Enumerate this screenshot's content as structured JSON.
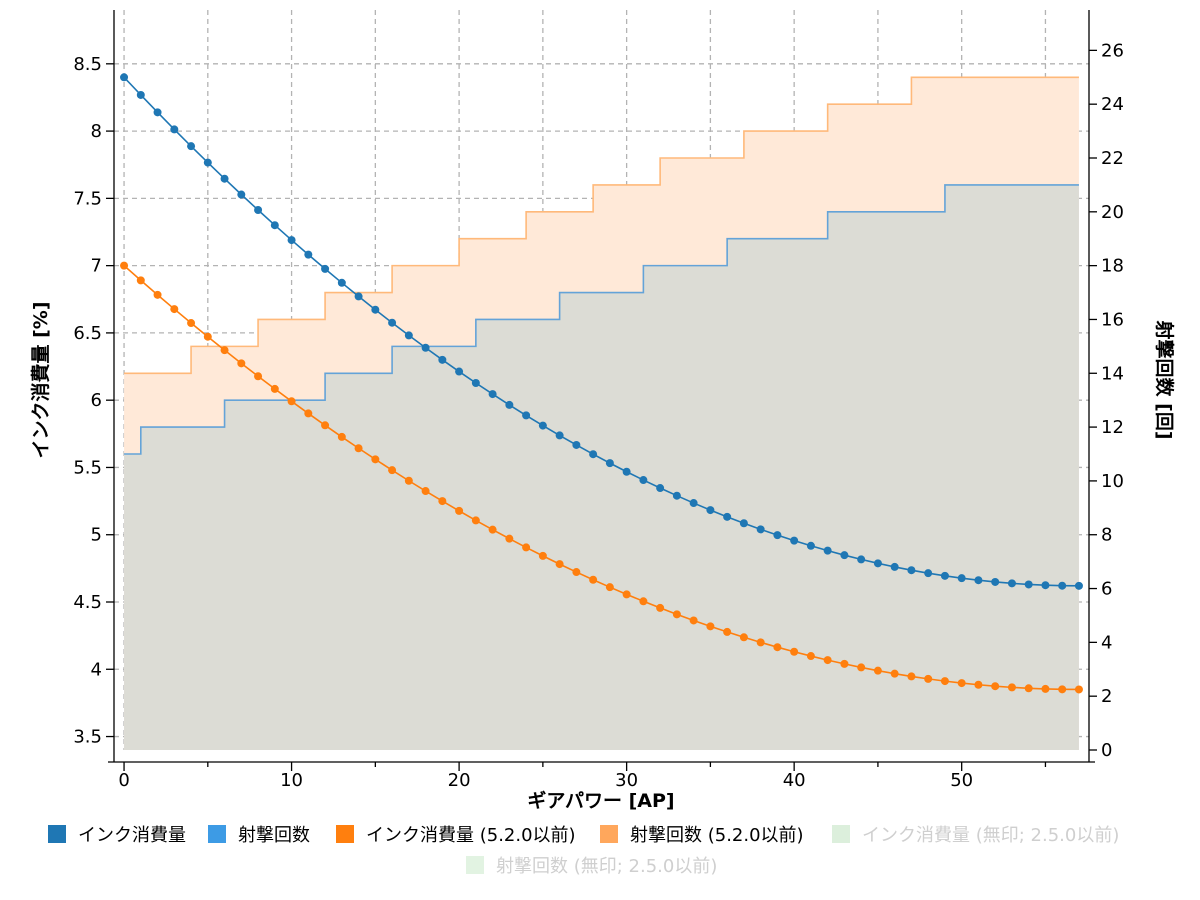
{
  "chart_data": {
    "type": "line",
    "xlabel": "ギアパワー [AP]",
    "ylabel_left": "インク消費量 [%]",
    "ylabel_right": "射撃回数 [回]",
    "xlim": [
      -0.6,
      57.6
    ],
    "ylim_left": [
      3.4,
      8.9
    ],
    "ylim_right": [
      0,
      27.5
    ],
    "x_ticks": [
      0,
      10,
      20,
      30,
      40,
      50
    ],
    "y_left_ticks": [
      3.5,
      4,
      4.5,
      5,
      5.5,
      6,
      6.5,
      7,
      7.5,
      8,
      8.5
    ],
    "y_right_ticks": [
      0,
      2,
      4,
      6,
      8,
      10,
      12,
      14,
      16,
      18,
      20,
      22,
      24,
      26
    ],
    "grid": true,
    "legend_position": "bottom",
    "ink_x_range": [
      0,
      57
    ],
    "series": [
      {
        "name": "インク消費量",
        "axis": "left",
        "kind": "line-markers",
        "color": "#1f77b4",
        "start": 8.4,
        "end": 4.62,
        "curvature": 1.18,
        "legend_color": "#1f77b4",
        "legend_muted": false
      },
      {
        "name": "射撃回数",
        "axis": "right",
        "kind": "step-area",
        "color": "#64a3d8",
        "fill": "#dcdcd5",
        "fill_opacity": 1,
        "steps": [
          [
            0,
            11
          ],
          [
            1,
            12
          ],
          [
            6,
            13
          ],
          [
            12,
            14
          ],
          [
            16,
            15
          ],
          [
            21,
            16
          ],
          [
            26,
            17
          ],
          [
            31,
            18
          ],
          [
            36,
            19
          ],
          [
            42,
            20
          ],
          [
            49,
            21
          ]
        ],
        "x_end": 57,
        "legend_color": "#3d9be5",
        "legend_muted": false
      },
      {
        "name": "インク消費量 (5.2.0以前)",
        "axis": "left",
        "kind": "line-markers",
        "color": "#ff7f0e",
        "start": 7.0,
        "end": 3.85,
        "curvature": 1.18,
        "legend_color": "#ff7f0e",
        "legend_muted": false
      },
      {
        "name": "射撃回数 (5.2.0以前)",
        "axis": "right",
        "kind": "step-area",
        "color": "#ffb97a",
        "fill": "#ffe9d8",
        "fill_opacity": 1,
        "steps": [
          [
            0,
            14
          ],
          [
            4,
            15
          ],
          [
            8,
            16
          ],
          [
            12,
            17
          ],
          [
            16,
            18
          ],
          [
            20,
            19
          ],
          [
            24,
            20
          ],
          [
            28,
            21
          ],
          [
            32,
            22
          ],
          [
            37,
            23
          ],
          [
            42,
            24
          ],
          [
            47,
            25
          ]
        ],
        "x_end": 57,
        "legend_color": "#ffa75c",
        "legend_muted": false
      },
      {
        "name": "インク消費量 (無印; 2.5.0以前)",
        "axis": "left",
        "kind": "hidden",
        "legend_color": "#dcefdc",
        "legend_muted": true
      },
      {
        "name": "射撃回数 (無印; 2.5.0以前)",
        "axis": "right",
        "kind": "hidden",
        "legend_color": "#e2f3e2",
        "legend_muted": true
      }
    ]
  }
}
